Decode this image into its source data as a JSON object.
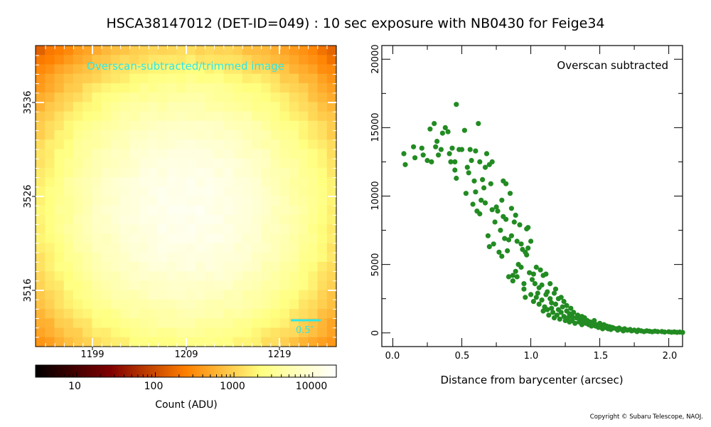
{
  "title": "HSCA38147012 (DET-ID=049) :  10 sec exposure with NB0430 for Feige34",
  "copyright": "Copyright © Subaru Telescope, NAOJ.",
  "chart_data": [
    {
      "type": "heatmap",
      "annotation": "Overscan-subtracted/trimmed image",
      "scale_bar_label": "0.5″",
      "x_ticks": [
        "1199",
        "1209",
        "1219"
      ],
      "y_ticks": [
        "3536",
        "3526",
        "3516"
      ],
      "colormap": "afmhot",
      "colorbar": {
        "label": "Count (ADU)",
        "scale": "log",
        "range": [
          3,
          20000
        ],
        "ticks": [
          "10",
          "100",
          "1000",
          "10000"
        ]
      },
      "image": {
        "nx": 32,
        "ny": 32,
        "peak_col": 15.5,
        "peak_row": 17,
        "peak_value": 15000,
        "background": 25,
        "sigma_px": 7.5
      }
    },
    {
      "type": "scatter",
      "annotation": "Overscan subtracted",
      "xlabel": "Distance from barycenter (arcsec)",
      "ylabel": "",
      "xlim": [
        -0.08,
        2.1
      ],
      "ylim": [
        -1000,
        21000
      ],
      "x_ticks": [
        "0.0",
        "0.5",
        "1.0",
        "1.5",
        "2.0"
      ],
      "y_ticks": [
        "0",
        "5000",
        "10000",
        "15000",
        "20000"
      ],
      "marker_color": "#228b22",
      "points": [
        [
          0.08,
          13100
        ],
        [
          0.09,
          12300
        ],
        [
          0.15,
          13600
        ],
        [
          0.16,
          12800
        ],
        [
          0.21,
          13500
        ],
        [
          0.22,
          13000
        ],
        [
          0.25,
          12600
        ],
        [
          0.27,
          14900
        ],
        [
          0.28,
          12500
        ],
        [
          0.3,
          15300
        ],
        [
          0.31,
          13600
        ],
        [
          0.32,
          14000
        ],
        [
          0.33,
          13000
        ],
        [
          0.35,
          13400
        ],
        [
          0.36,
          14600
        ],
        [
          0.38,
          15000
        ],
        [
          0.4,
          14700
        ],
        [
          0.41,
          13100
        ],
        [
          0.42,
          12500
        ],
        [
          0.43,
          13500
        ],
        [
          0.45,
          12500
        ],
        [
          0.45,
          11900
        ],
        [
          0.46,
          11300
        ],
        [
          0.46,
          16700
        ],
        [
          0.48,
          13400
        ],
        [
          0.5,
          13400
        ],
        [
          0.52,
          14800
        ],
        [
          0.53,
          10200
        ],
        [
          0.54,
          12100
        ],
        [
          0.55,
          11700
        ],
        [
          0.56,
          13400
        ],
        [
          0.57,
          12600
        ],
        [
          0.58,
          9400
        ],
        [
          0.59,
          11100
        ],
        [
          0.6,
          13300
        ],
        [
          0.6,
          10300
        ],
        [
          0.61,
          8900
        ],
        [
          0.62,
          15300
        ],
        [
          0.63,
          12500
        ],
        [
          0.63,
          8700
        ],
        [
          0.64,
          9700
        ],
        [
          0.65,
          11200
        ],
        [
          0.66,
          10600
        ],
        [
          0.67,
          9500
        ],
        [
          0.67,
          12100
        ],
        [
          0.68,
          13100
        ],
        [
          0.69,
          7100
        ],
        [
          0.7,
          12300
        ],
        [
          0.7,
          6300
        ],
        [
          0.71,
          10900
        ],
        [
          0.72,
          9000
        ],
        [
          0.72,
          12500
        ],
        [
          0.73,
          6500
        ],
        [
          0.74,
          8100
        ],
        [
          0.75,
          9200
        ],
        [
          0.76,
          8900
        ],
        [
          0.77,
          5900
        ],
        [
          0.78,
          7500
        ],
        [
          0.79,
          9700
        ],
        [
          0.79,
          5600
        ],
        [
          0.8,
          11100
        ],
        [
          0.8,
          8500
        ],
        [
          0.81,
          6900
        ],
        [
          0.82,
          10900
        ],
        [
          0.82,
          8300
        ],
        [
          0.83,
          6000
        ],
        [
          0.84,
          4100
        ],
        [
          0.84,
          6800
        ],
        [
          0.85,
          10200
        ],
        [
          0.86,
          7100
        ],
        [
          0.86,
          9100
        ],
        [
          0.87,
          4200
        ],
        [
          0.87,
          3800
        ],
        [
          0.88,
          8100
        ],
        [
          0.89,
          4500
        ],
        [
          0.89,
          8600
        ],
        [
          0.9,
          6700
        ],
        [
          0.9,
          4100
        ],
        [
          0.91,
          5000
        ],
        [
          0.92,
          7900
        ],
        [
          0.93,
          4800
        ],
        [
          0.93,
          6500
        ],
        [
          0.94,
          6100
        ],
        [
          0.95,
          3600
        ],
        [
          0.95,
          3200
        ],
        [
          0.96,
          5900
        ],
        [
          0.96,
          2600
        ],
        [
          0.97,
          7600
        ],
        [
          0.97,
          5700
        ],
        [
          0.98,
          6200
        ],
        [
          0.98,
          7700
        ],
        [
          0.99,
          4400
        ],
        [
          1.0,
          2800
        ],
        [
          1.0,
          6700
        ],
        [
          1.01,
          3900
        ],
        [
          1.02,
          4300
        ],
        [
          1.02,
          2300
        ],
        [
          1.03,
          3600
        ],
        [
          1.04,
          2600
        ],
        [
          1.04,
          4800
        ],
        [
          1.05,
          2900
        ],
        [
          1.06,
          3300
        ],
        [
          1.06,
          2100
        ],
        [
          1.07,
          4600
        ],
        [
          1.08,
          2400
        ],
        [
          1.08,
          3500
        ],
        [
          1.09,
          1600
        ],
        [
          1.09,
          4200
        ],
        [
          1.1,
          1900
        ],
        [
          1.11,
          2800
        ],
        [
          1.11,
          4300
        ],
        [
          1.12,
          1700
        ],
        [
          1.12,
          3000
        ],
        [
          1.13,
          1300
        ],
        [
          1.14,
          2500
        ],
        [
          1.14,
          3600
        ],
        [
          1.15,
          1800
        ],
        [
          1.15,
          2200
        ],
        [
          1.16,
          1500
        ],
        [
          1.17,
          2900
        ],
        [
          1.17,
          1100
        ],
        [
          1.18,
          2100
        ],
        [
          1.18,
          3200
        ],
        [
          1.19,
          1300
        ],
        [
          1.2,
          2500
        ],
        [
          1.2,
          1700
        ],
        [
          1.21,
          1000
        ],
        [
          1.22,
          2600
        ],
        [
          1.22,
          1500
        ],
        [
          1.23,
          1900
        ],
        [
          1.24,
          1200
        ],
        [
          1.24,
          2300
        ],
        [
          1.25,
          900
        ],
        [
          1.26,
          1600
        ],
        [
          1.26,
          2000
        ],
        [
          1.27,
          1100
        ],
        [
          1.28,
          1400
        ],
        [
          1.28,
          800
        ],
        [
          1.29,
          1800
        ],
        [
          1.3,
          1200
        ],
        [
          1.3,
          900
        ],
        [
          1.31,
          1500
        ],
        [
          1.32,
          700
        ],
        [
          1.33,
          1100
        ],
        [
          1.34,
          1300
        ],
        [
          1.35,
          800
        ],
        [
          1.36,
          1000
        ],
        [
          1.37,
          600
        ],
        [
          1.37,
          1200
        ],
        [
          1.38,
          900
        ],
        [
          1.39,
          1100
        ],
        [
          1.4,
          700
        ],
        [
          1.41,
          900
        ],
        [
          1.42,
          600
        ],
        [
          1.43,
          800
        ],
        [
          1.44,
          500
        ],
        [
          1.45,
          700
        ],
        [
          1.46,
          900
        ],
        [
          1.47,
          500
        ],
        [
          1.48,
          600
        ],
        [
          1.49,
          400
        ],
        [
          1.5,
          700
        ],
        [
          1.51,
          500
        ],
        [
          1.52,
          300
        ],
        [
          1.53,
          600
        ],
        [
          1.54,
          400
        ],
        [
          1.55,
          500
        ],
        [
          1.56,
          300
        ],
        [
          1.57,
          450
        ],
        [
          1.58,
          250
        ],
        [
          1.59,
          400
        ],
        [
          1.6,
          350
        ],
        [
          1.62,
          300
        ],
        [
          1.63,
          200
        ],
        [
          1.64,
          350
        ],
        [
          1.66,
          250
        ],
        [
          1.67,
          150
        ],
        [
          1.68,
          300
        ],
        [
          1.7,
          200
        ],
        [
          1.72,
          250
        ],
        [
          1.73,
          150
        ],
        [
          1.75,
          200
        ],
        [
          1.77,
          100
        ],
        [
          1.78,
          200
        ],
        [
          1.8,
          150
        ],
        [
          1.82,
          100
        ],
        [
          1.84,
          150
        ],
        [
          1.86,
          120
        ],
        [
          1.88,
          80
        ],
        [
          1.9,
          130
        ],
        [
          1.92,
          90
        ],
        [
          1.95,
          100
        ],
        [
          1.97,
          60
        ],
        [
          2.0,
          80
        ],
        [
          2.02,
          50
        ],
        [
          2.04,
          70
        ],
        [
          2.06,
          40
        ],
        [
          2.08,
          60
        ],
        [
          2.1,
          30
        ]
      ]
    }
  ]
}
